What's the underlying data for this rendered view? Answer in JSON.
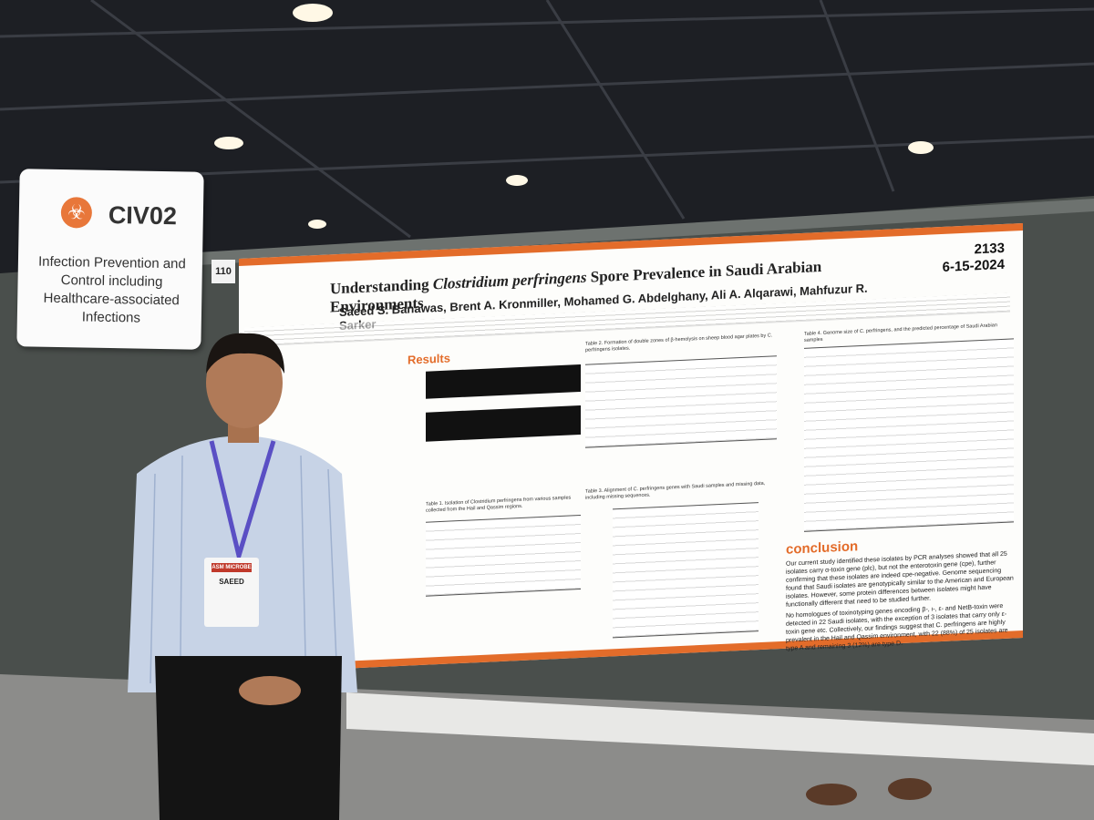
{
  "sign": {
    "code": "CIV02",
    "label": "Infection Prevention and Control including Healthcare-associated Infections"
  },
  "board_number": "110",
  "poster": {
    "title": [
      "Understanding ",
      "Clostridium perfringens",
      " Spore Prevalence in Saudi Arabian Environments"
    ],
    "poster_id": "2133",
    "date": "6-15-2024",
    "authors": "Saeed S. Banawas, Brent A. Kronmiller, Mohamed G. Abdelghany, Ali A. Alqarawi, Mahfuzur R. Sarker",
    "results_heading": "Results",
    "table_captions": [
      "Table 1. Isolation of Clostridium perfringens from various samples collected from the Hail and Qassim regions.",
      "Table 2. Formation of double zones of β-hemolysis on sheep blood agar plates by C. perfringens isolates.",
      "Table 3. Alignment of C. perfringens genes with Saudi samples and missing data, including missing sequences.",
      "Table 4. Genome size of C. perfringens, and the predicted percentage of Saudi Arabian samples"
    ],
    "conclusion_heading": "conclusion",
    "conclusion": [
      "Our current study identified these isolates by PCR analyses showed that all 25 isolates carry α-toxin gene (plc), but not the enterotoxin gene (cpe), further confirming that these isolates are indeed cpe-negative. Genome sequencing found that Saudi isolates are genotypically similar to the American and European isolates. However, some protein differences between isolates might have functionally different that need to be studied further.",
      "No homologues of toxinotyping genes encoding β-, ι-, ε- and NetB-toxin were detected in 22 Saudi isolates, with the exception of 3 isolates that carry only ε-toxin gene etc. Collectively, our findings suggest that C. perfringens are highly prevalent in the Hail and Qassim environment, with 22 (88%) of 25 isolates are type A and remaining 3 (12%) are type D."
    ]
  },
  "badge": {
    "event": "ASM MICROBE",
    "name": "SAEED"
  }
}
